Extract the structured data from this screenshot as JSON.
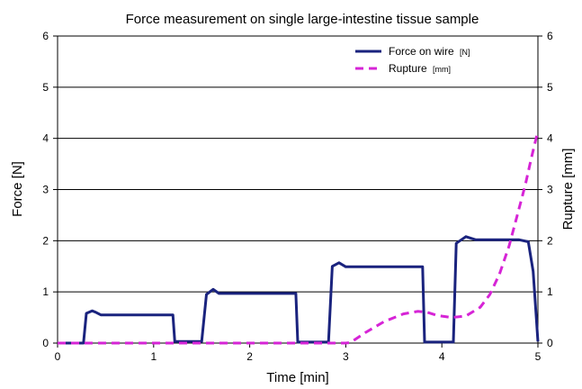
{
  "chart_data": {
    "type": "line",
    "title": "Force measurement on single large-intestine tissue sample",
    "xlabel": "Time [min]",
    "ylabel": "Force [N]",
    "y2label": "Rupture [mm]",
    "xlim": [
      0,
      5
    ],
    "ylim": [
      0,
      6
    ],
    "y2lim": [
      0,
      6
    ],
    "x_ticks": [
      "0",
      "1",
      "2",
      "3",
      "4",
      "5"
    ],
    "y_ticks": [
      "0",
      "1",
      "2",
      "3",
      "4",
      "5",
      "6"
    ],
    "y2_ticks": [
      "0",
      "1",
      "2",
      "3",
      "4",
      "5",
      "6"
    ],
    "grid": "horizontal",
    "legend_position": "top-right",
    "series": [
      {
        "name": "Force on wire",
        "unit": "[N]",
        "color": "#1a237e",
        "style": "solid",
        "axis": "left",
        "x": [
          0,
          0.27,
          0.3,
          0.36,
          0.4,
          0.45,
          1.2,
          1.22,
          1.5,
          1.55,
          1.62,
          1.68,
          2.48,
          2.5,
          2.82,
          2.86,
          2.93,
          3.0,
          3.8,
          3.82,
          4.12,
          4.15,
          4.25,
          4.35,
          4.8,
          4.9,
          4.95,
          5.0
        ],
        "y": [
          0,
          0,
          0.58,
          0.63,
          0.6,
          0.55,
          0.55,
          0.03,
          0.03,
          0.95,
          1.05,
          0.97,
          0.97,
          0.02,
          0.02,
          1.5,
          1.57,
          1.49,
          1.49,
          0.02,
          0.02,
          1.95,
          2.08,
          2.02,
          2.02,
          1.98,
          1.4,
          0.03
        ]
      },
      {
        "name": "Rupture",
        "unit": "[mm]",
        "color": "#d624d6",
        "style": "dashed",
        "axis": "right",
        "x": [
          0,
          2.5,
          3.0,
          3.05,
          3.2,
          3.4,
          3.6,
          3.75,
          3.85,
          3.95,
          4.1,
          4.25,
          4.4,
          4.5,
          4.6,
          4.7,
          4.8,
          4.87,
          4.93,
          5.0
        ],
        "y": [
          0,
          0,
          0,
          0.01,
          0.2,
          0.42,
          0.57,
          0.62,
          0.6,
          0.54,
          0.5,
          0.53,
          0.7,
          0.95,
          1.35,
          1.9,
          2.6,
          3.1,
          3.6,
          4.15
        ]
      }
    ]
  }
}
